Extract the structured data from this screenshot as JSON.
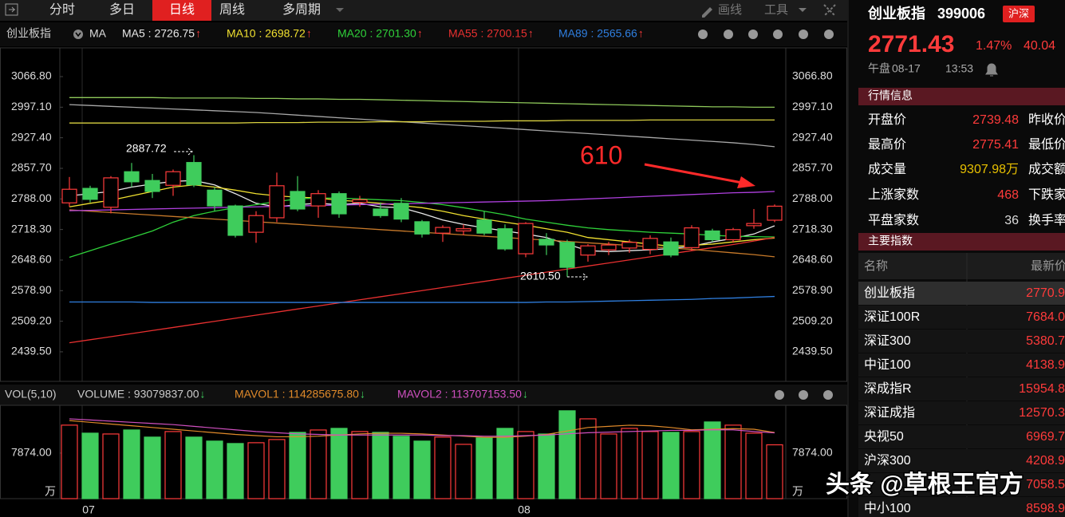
{
  "toolbar": {
    "tabs": [
      "分时",
      "多日",
      "日线",
      "周线",
      "多周期"
    ],
    "active": 2,
    "tools": [
      "画线",
      "工具"
    ]
  },
  "legend": {
    "name": "创业板指",
    "indicator": "MA",
    "items": [
      {
        "label": "MA5 : 2726.75",
        "arrow": "↑"
      },
      {
        "label": "MA10 : 2698.72",
        "arrow": "↑"
      },
      {
        "label": "MA20 : 2701.30",
        "arrow": "↑"
      },
      {
        "label": "MA55 : 2700.15",
        "arrow": "↑"
      },
      {
        "label": "MA89 : 2565.66",
        "arrow": "↑"
      }
    ]
  },
  "chart": {
    "type": "candlestick",
    "ylim": [
      2372.1,
      3132.3
    ],
    "yticks": [
      {
        "value": 3066.8,
        "label": "3066.80"
      },
      {
        "value": 2997.1,
        "label": "2997.10"
      },
      {
        "value": 2927.4,
        "label": "2927.40"
      },
      {
        "value": 2857.7,
        "label": "2857.70"
      },
      {
        "value": 2788,
        "label": "2788.00"
      },
      {
        "value": 2718.3,
        "label": "2718.30"
      },
      {
        "value": 2648.6,
        "label": "2648.60"
      },
      {
        "value": 2578.9,
        "label": "2578.90"
      },
      {
        "value": 2509.2,
        "label": "2509.20"
      },
      {
        "value": 2439.5,
        "label": "2439.50"
      }
    ],
    "months": [
      "07",
      "08"
    ],
    "up_color": "#ff3b3b",
    "down_color": "#3fcc5c",
    "candles": [
      [
        2779,
        2838,
        2770,
        2810
      ],
      [
        2812,
        2818,
        2780,
        2787
      ],
      [
        2769,
        2840,
        2755,
        2836
      ],
      [
        2850,
        2870,
        2815,
        2827
      ],
      [
        2830,
        2845,
        2790,
        2805
      ],
      [
        2819,
        2855,
        2795,
        2850
      ],
      [
        2871,
        2887.72,
        2815,
        2820
      ],
      [
        2808,
        2815,
        2760,
        2772
      ],
      [
        2772,
        2775,
        2700,
        2705
      ],
      [
        2712,
        2760,
        2688,
        2750
      ],
      [
        2745,
        2848,
        2735,
        2818
      ],
      [
        2805,
        2840,
        2760,
        2765
      ],
      [
        2772,
        2808,
        2745,
        2800
      ],
      [
        2800,
        2805,
        2745,
        2754
      ],
      [
        2780,
        2795,
        2770,
        2786
      ],
      [
        2765,
        2780,
        2745,
        2750
      ],
      [
        2778,
        2790,
        2735,
        2742
      ],
      [
        2736,
        2740,
        2700,
        2708
      ],
      [
        2710,
        2728,
        2690,
        2723
      ],
      [
        2715,
        2730,
        2705,
        2720
      ],
      [
        2740,
        2760,
        2705,
        2710
      ],
      [
        2720,
        2730,
        2670,
        2674
      ],
      [
        2663,
        2735,
        2655,
        2732
      ],
      [
        2696,
        2710,
        2660,
        2683
      ],
      [
        2689,
        2695,
        2610.5,
        2632
      ],
      [
        2660,
        2685,
        2645,
        2681
      ],
      [
        2672,
        2690,
        2660,
        2683
      ],
      [
        2676,
        2695,
        2665,
        2689
      ],
      [
        2673,
        2705,
        2662,
        2698
      ],
      [
        2690,
        2700,
        2655,
        2660
      ],
      [
        2677,
        2728,
        2670,
        2722
      ],
      [
        2715,
        2720,
        2690,
        2695
      ],
      [
        2695,
        2722,
        2688,
        2718
      ],
      [
        2727,
        2765,
        2720,
        2732
      ],
      [
        2739.48,
        2775.41,
        2735,
        2771.43
      ]
    ],
    "ma": [
      {
        "color": "#e8e8e8",
        "values": [
          2795,
          2800,
          2805,
          2815,
          2822,
          2828,
          2830,
          2820,
          2800,
          2778,
          2770,
          2775,
          2778,
          2775,
          2778,
          2770,
          2768,
          2755,
          2740,
          2730,
          2722,
          2715,
          2708,
          2700,
          2685,
          2670,
          2668,
          2670,
          2672,
          2675,
          2680,
          2690,
          2698,
          2708,
          2726.75
        ]
      },
      {
        "color": "#f0e030",
        "values": [
          2770,
          2778,
          2785,
          2795,
          2805,
          2815,
          2820,
          2815,
          2808,
          2800,
          2795,
          2792,
          2790,
          2785,
          2782,
          2778,
          2773,
          2768,
          2760,
          2750,
          2742,
          2735,
          2728,
          2720,
          2712,
          2700,
          2695,
          2690,
          2685,
          2680,
          2682,
          2685,
          2690,
          2695,
          2698.72
        ]
      },
      {
        "color": "#2fd13a",
        "values": [
          2655,
          2670,
          2685,
          2700,
          2715,
          2735,
          2750,
          2760,
          2768,
          2775,
          2782,
          2788,
          2790,
          2790,
          2788,
          2786,
          2784,
          2780,
          2775,
          2768,
          2760,
          2752,
          2742,
          2735,
          2728,
          2722,
          2718,
          2715,
          2712,
          2710,
          2708,
          2705,
          2703,
          2702,
          2701.3
        ]
      },
      {
        "color": "#e83030",
        "values": [
          2460,
          2467,
          2474,
          2481,
          2488,
          2495,
          2502,
          2509,
          2516,
          2523,
          2530,
          2537,
          2544,
          2551,
          2558,
          2565,
          2572,
          2579,
          2586,
          2593,
          2600,
          2607,
          2614,
          2621,
          2628,
          2635,
          2642,
          2649,
          2656,
          2663,
          2670,
          2677,
          2684,
          2692,
          2700.15
        ]
      },
      {
        "color": "#2f7fe0",
        "values": [
          2553,
          2553,
          2553,
          2553,
          2552,
          2552,
          2552,
          2552,
          2552,
          2552,
          2552,
          2552,
          2552,
          2552,
          2552,
          2552,
          2552,
          2552,
          2552,
          2552,
          2552,
          2552,
          2552,
          2553,
          2553,
          2554,
          2555,
          2556,
          2557,
          2558,
          2559,
          2561,
          2562,
          2564,
          2565.66
        ]
      },
      {
        "color": "#c87a2a",
        "values": [
          2763,
          2760,
          2757,
          2754,
          2751,
          2748,
          2745,
          2742,
          2739,
          2736,
          2733,
          2730,
          2727,
          2724,
          2721,
          2718,
          2715,
          2712,
          2709,
          2706,
          2703,
          2700,
          2697,
          2694,
          2691,
          2688,
          2685,
          2682,
          2679,
          2676,
          2673,
          2669,
          2665,
          2661,
          2656
        ]
      },
      {
        "color": "#b040e0",
        "values": [
          2761,
          2762,
          2763,
          2764,
          2765,
          2766,
          2767,
          2768,
          2769,
          2770,
          2771,
          2772,
          2773,
          2774,
          2775,
          2776,
          2777,
          2778,
          2779,
          2780,
          2781,
          2782,
          2783,
          2784,
          2786,
          2788,
          2790,
          2792,
          2794,
          2796,
          2798,
          2800,
          2802,
          2803,
          2805
        ]
      },
      {
        "color": "#a8a8a8",
        "values": [
          3003,
          3001,
          2999,
          2997,
          2995,
          2993,
          2991,
          2989,
          2987,
          2985,
          2982,
          2979,
          2976,
          2973,
          2970,
          2967,
          2964,
          2961,
          2958,
          2955,
          2952,
          2949,
          2946,
          2943,
          2940,
          2937,
          2934,
          2931,
          2928,
          2925,
          2922,
          2919,
          2916,
          2912,
          2907
        ]
      },
      {
        "color": "#d8d040",
        "values": [
          2961,
          2961,
          2961,
          2961,
          2961,
          2961,
          2961,
          2961,
          2961,
          2962,
          2962,
          2962,
          2963,
          2963,
          2963,
          2964,
          2964,
          2964,
          2965,
          2965,
          2965,
          2966,
          2966,
          2966,
          2967,
          2967,
          2967,
          2967,
          2968,
          2968,
          2968,
          2968,
          2968,
          2968,
          2968
        ]
      },
      {
        "color": "#8ec85a",
        "values": [
          3019,
          3019,
          3019,
          3019,
          3019,
          3018,
          3018,
          3018,
          3018,
          3017,
          3017,
          3016,
          3016,
          3015,
          3015,
          3014,
          3013,
          3012,
          3011,
          3010,
          3009,
          3008,
          3007,
          3006,
          3005,
          3004,
          3003,
          3002,
          3001,
          3000,
          2999,
          2998,
          2998,
          2997,
          2997
        ]
      }
    ],
    "annotations": [
      "2887.72",
      "2610.50",
      "610"
    ]
  },
  "volume": {
    "title": "VOL(5,10)",
    "items": [
      {
        "label": "VOLUME : 93079837.00",
        "arrow": "↓"
      },
      {
        "label": "MAVOL1 : 114285675.80",
        "arrow": "↓"
      },
      {
        "label": "MAVOL2 : 113707153.50",
        "arrow": "↓"
      }
    ],
    "ylim": [
      0,
      16000
    ],
    "yticks": [
      {
        "value": 7874,
        "label": "7874.00"
      }
    ],
    "unit": "万",
    "values": [
      12710,
      11320,
      11180,
      11870,
      10640,
      11600,
      10640,
      9950,
      9530,
      9670,
      10220,
      11460,
      11870,
      12150,
      11600,
      11460,
      10780,
      9950,
      10640,
      9390,
      10500,
      12150,
      11600,
      11180,
      15190,
      13800,
      11180,
      12150,
      11600,
      11460,
      11600,
      13260,
      12710,
      11320,
      9307.98
    ],
    "ma": [
      {
        "color": "#e08a2a",
        "values": [
          13500,
          13200,
          12900,
          12600,
          12300,
          12000,
          11700,
          11400,
          11100,
          10900,
          10700,
          10700,
          10800,
          11000,
          11200,
          11300,
          11300,
          11200,
          11000,
          10800,
          10600,
          10600,
          10800,
          11100,
          11700,
          12300,
          12500,
          12700,
          12600,
          12300,
          11900,
          12000,
          12100,
          12000,
          11428.57
        ]
      },
      {
        "color": "#d050c0",
        "values": [
          13800,
          13600,
          13400,
          13200,
          13000,
          12800,
          12500,
          12200,
          11900,
          11600,
          11400,
          11200,
          11100,
          11000,
          11000,
          11000,
          11000,
          11000,
          10900,
          10900,
          10800,
          10800,
          10900,
          11000,
          11200,
          11400,
          11500,
          11600,
          11700,
          11800,
          11800,
          11900,
          11900,
          11600,
          11370.72
        ]
      }
    ]
  },
  "quote": {
    "name": "创业板指",
    "code": "399006",
    "market": "沪深",
    "price": 2771.43,
    "pct": "1.47%",
    "change": 40.04,
    "session": "午盘",
    "date": "08-17",
    "time": "13:53",
    "section1": "行情信息",
    "rows": [
      [
        "开盘价",
        2739.48,
        "昨收价"
      ],
      [
        "最高价",
        2775.41,
        "最低价"
      ],
      [
        "成交量",
        "9307.98万",
        "成交额"
      ],
      [
        "上涨家数",
        468,
        "下跌家"
      ],
      [
        "平盘家数",
        36,
        "换手率"
      ]
    ],
    "section2": "主要指数",
    "table_header": [
      "名称",
      "最新价"
    ],
    "indices": [
      {
        "name": "创业板指",
        "price": "2770.9"
      },
      {
        "name": "深证100R",
        "price": "7684.0"
      },
      {
        "name": "深证300",
        "price": "5380.7"
      },
      {
        "name": "中证100",
        "price": "4138.9"
      },
      {
        "name": "深成指R",
        "price": "15954.8"
      },
      {
        "name": "深证成指",
        "price": "12570.3"
      },
      {
        "name": "央视50",
        "price": "6969.7"
      },
      {
        "name": "沪深300",
        "price": "4208.9"
      },
      {
        "price": "7058.5"
      },
      {
        "name": "中小100",
        "price": "8598.9"
      }
    ]
  },
  "watermark": "头条 @草根王官方"
}
